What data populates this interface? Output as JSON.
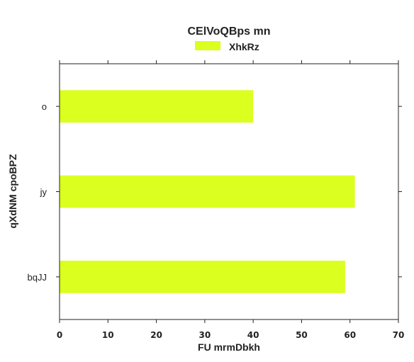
{
  "chart_data": {
    "type": "bar",
    "orientation": "horizontal",
    "title": "CElVoQBps mn",
    "xlabel": "FU mrmDbkh",
    "ylabel": "qXdNM cpoBPZ",
    "categories": [
      "o",
      "jy",
      "bqJJ"
    ],
    "series": [
      {
        "name": "XhkRz",
        "values": [
          40,
          61,
          59
        ],
        "color": "#dbff1f"
      }
    ],
    "xlim": [
      0,
      70
    ],
    "xticks": [
      0,
      10,
      20,
      30,
      40,
      50,
      60,
      70
    ],
    "grid": false,
    "legend_position": "top-center"
  }
}
